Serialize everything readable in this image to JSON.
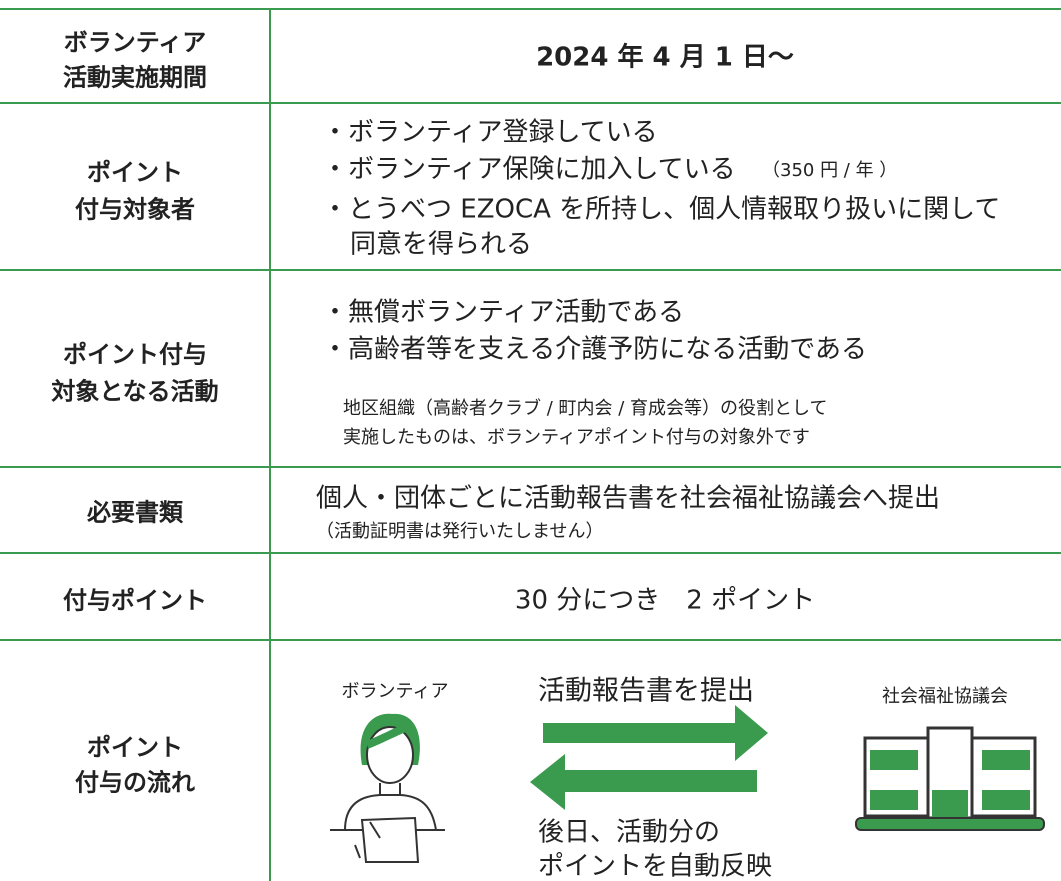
{
  "rows": [
    {
      "label": [
        "ボランティア",
        "活動実施期間"
      ],
      "content": [
        "2024 年 4 月 1 日〜"
      ]
    },
    {
      "label": [
        "ポイント",
        "付与対象者"
      ],
      "content": [
        "・ボランティア登録している",
        "・ボランティア保険に加入している",
        "・とうべつ EZOCA を所持し、個人情報取り扱いに関して",
        "同意を得られる"
      ],
      "note": "（350 円 / 年 ）"
    },
    {
      "label": [
        "ポイント付与",
        "対象となる活動"
      ],
      "content": [
        "・無償ボランティア活動である",
        "・高齢者等を支える介護予防になる活動である"
      ],
      "small": [
        "地区組織（高齢者クラブ / 町内会 / 育成会等）の役割として",
        "実施したものは、ボランティアポイント付与の対象外です"
      ]
    },
    {
      "label": [
        "必要書類"
      ],
      "content": [
        "個人・団体ごとに活動報告書を社会福祉協議会へ提出"
      ],
      "small": [
        "（活動証明書は発行いたしません）"
      ]
    },
    {
      "label": [
        "付与ポイント"
      ],
      "content": [
        "30 分につき　2 ポイント"
      ]
    },
    {
      "label": [
        "ポイント",
        "付与の流れ"
      ],
      "flow": {
        "left": "ボランティア",
        "right": "社会福祉協議会",
        "to_right": "活動報告書を提出",
        "to_left": [
          "後日、活動分の",
          "ポイントを自動反映"
        ]
      }
    }
  ]
}
